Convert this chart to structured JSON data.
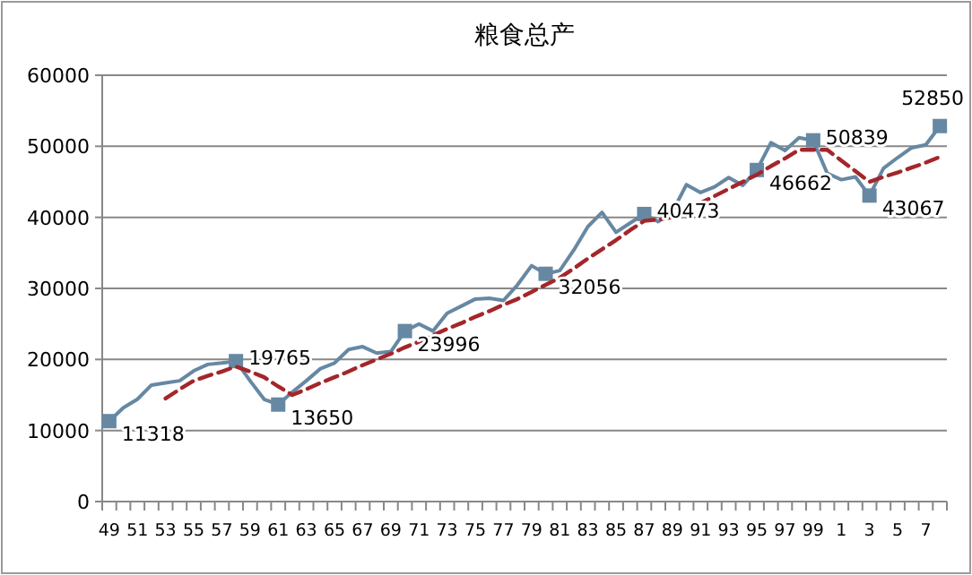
{
  "chart_data": {
    "type": "line",
    "title": "粮食总产",
    "categories": [
      "49",
      null,
      "51",
      null,
      "53",
      null,
      "55",
      null,
      "57",
      null,
      "59",
      null,
      "61",
      null,
      "63",
      null,
      "65",
      null,
      "67",
      null,
      "69",
      null,
      "71",
      null,
      "73",
      null,
      "75",
      null,
      "77",
      null,
      "79",
      null,
      "81",
      null,
      "83",
      null,
      "85",
      null,
      "87",
      null,
      "89",
      null,
      "91",
      null,
      "93",
      null,
      "95",
      null,
      "97",
      null,
      "99",
      null,
      "1",
      null,
      "3",
      null,
      "5",
      null,
      "7",
      null
    ],
    "ylim": [
      0,
      60000
    ],
    "yticks": [
      0,
      10000,
      20000,
      30000,
      40000,
      50000,
      60000
    ],
    "grid": "y",
    "series": [
      {
        "color": "#6688a3",
        "values": [
          11318,
          13200,
          14400,
          16400,
          16700,
          17000,
          18400,
          19300,
          19500,
          19765,
          17000,
          14400,
          13650,
          15400,
          17000,
          18700,
          19500,
          21400,
          21800,
          20900,
          21100,
          23996,
          25000,
          24000,
          26500,
          27500,
          28500,
          28600,
          28300,
          30500,
          33200,
          32056,
          32500,
          35400,
          38700,
          40700,
          37900,
          39200,
          40473,
          39400,
          40800,
          44600,
          43500,
          44300,
          45600,
          44500,
          46662,
          50500,
          49400,
          51200,
          50839,
          46200,
          45300,
          45700,
          43067,
          46900,
          48400,
          49800,
          50200,
          52850
        ],
        "value_labels": [
          "11318",
          null,
          null,
          null,
          null,
          null,
          null,
          null,
          null,
          "19765",
          null,
          null,
          "13650",
          null,
          null,
          null,
          null,
          null,
          null,
          null,
          null,
          "23996",
          null,
          null,
          null,
          null,
          null,
          null,
          null,
          null,
          null,
          "32056",
          null,
          null,
          null,
          null,
          null,
          null,
          "40473",
          null,
          null,
          null,
          null,
          null,
          null,
          null,
          "46662",
          null,
          null,
          null,
          "50839",
          null,
          null,
          null,
          "43067",
          null,
          null,
          null,
          null,
          "52850"
        ]
      },
      {
        "color": "#a3262b",
        "line_style": "dashed",
        "values": [
          null,
          null,
          null,
          null,
          14500,
          15800,
          17000,
          17700,
          18300,
          19000,
          18300,
          17500,
          16200,
          15000,
          15800,
          16700,
          17500,
          18300,
          19200,
          20000,
          20800,
          21700,
          22500,
          23400,
          24300,
          25100,
          26000,
          26800,
          27700,
          28500,
          29500,
          30500,
          31500,
          32800,
          34200,
          35500,
          36800,
          38200,
          39500,
          39700,
          40000,
          41000,
          42000,
          43000,
          44000,
          45000,
          46000,
          47200,
          48300,
          49500,
          49500,
          49500,
          48000,
          46500,
          45000,
          45700,
          46300,
          47000,
          47700,
          48500
        ]
      }
    ]
  }
}
